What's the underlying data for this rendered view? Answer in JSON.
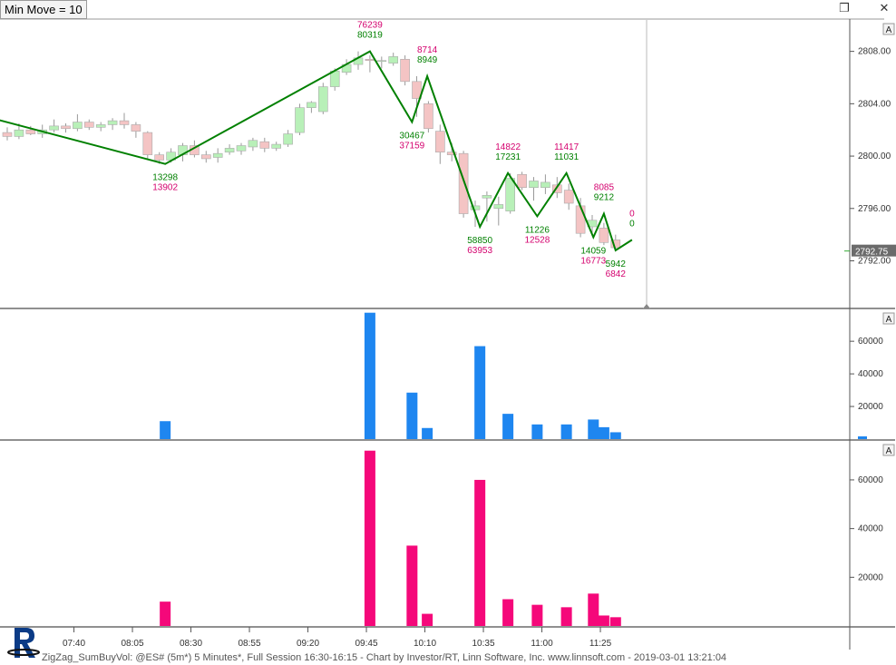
{
  "toolbar": {
    "min_move_label": "Min Move = 10"
  },
  "footer": {
    "caption": "ZigZag_SumBuyVol: @ES# (5m*) 5 Minutes*, Full Session 16:30-16:15 - Chart by Investor/RT, Linn Software, Inc. www.linnsoft.com - 2019-03-01 13:21:04"
  },
  "colors": {
    "up_candle": "#b8f0b8",
    "down_candle": "#f4c4c4",
    "zigzag": "#008000",
    "buy_volume": "#1e86f0",
    "sell_volume": "#f5087a",
    "label_green": "#008000",
    "label_magenta": "#d4006e"
  },
  "chart_data": [
    {
      "type": "candlestick",
      "symbol": "@ES# (5m*)",
      "y_ticks": [
        2792,
        2796,
        2800,
        2804,
        2808
      ],
      "ylim": [
        2788.5,
        2810.4
      ],
      "x_tick_labels": [
        "07:40",
        "08:05",
        "08:30",
        "08:55",
        "09:20",
        "09:45",
        "10:10",
        "10:35",
        "11:00",
        "11:25"
      ],
      "last_price_label": "2792.75",
      "candles": [
        {
          "o": 2801.8,
          "h": 2802.2,
          "l": 2801.2,
          "c": 2801.5
        },
        {
          "o": 2801.5,
          "h": 2802.5,
          "l": 2801.3,
          "c": 2802.0
        },
        {
          "o": 2802.0,
          "h": 2802.3,
          "l": 2801.6,
          "c": 2801.7
        },
        {
          "o": 2801.7,
          "h": 2802.4,
          "l": 2801.4,
          "c": 2802.0
        },
        {
          "o": 2802.0,
          "h": 2802.8,
          "l": 2801.8,
          "c": 2802.3
        },
        {
          "o": 2802.3,
          "h": 2802.5,
          "l": 2801.8,
          "c": 2802.1
        },
        {
          "o": 2802.1,
          "h": 2803.2,
          "l": 2801.9,
          "c": 2802.6
        },
        {
          "o": 2802.6,
          "h": 2802.8,
          "l": 2802.0,
          "c": 2802.2
        },
        {
          "o": 2802.2,
          "h": 2802.6,
          "l": 2801.9,
          "c": 2802.4
        },
        {
          "o": 2802.4,
          "h": 2802.9,
          "l": 2802.0,
          "c": 2802.7
        },
        {
          "o": 2802.7,
          "h": 2803.3,
          "l": 2802.1,
          "c": 2802.4
        },
        {
          "o": 2802.4,
          "h": 2802.6,
          "l": 2801.4,
          "c": 2801.9
        },
        {
          "o": 2801.8,
          "h": 2801.9,
          "l": 2799.8,
          "c": 2800.1
        },
        {
          "o": 2800.1,
          "h": 2800.3,
          "l": 2799.4,
          "c": 2799.7
        },
        {
          "o": 2799.7,
          "h": 2800.6,
          "l": 2799.5,
          "c": 2800.3
        },
        {
          "o": 2800.1,
          "h": 2801.0,
          "l": 2799.6,
          "c": 2800.8
        },
        {
          "o": 2800.8,
          "h": 2801.2,
          "l": 2799.9,
          "c": 2800.1
        },
        {
          "o": 2800.1,
          "h": 2800.4,
          "l": 2799.5,
          "c": 2799.8
        },
        {
          "o": 2799.9,
          "h": 2800.6,
          "l": 2799.5,
          "c": 2800.2
        },
        {
          "o": 2800.3,
          "h": 2800.9,
          "l": 2800.1,
          "c": 2800.6
        },
        {
          "o": 2800.4,
          "h": 2801.0,
          "l": 2800.1,
          "c": 2800.8
        },
        {
          "o": 2800.7,
          "h": 2801.4,
          "l": 2800.4,
          "c": 2801.2
        },
        {
          "o": 2801.1,
          "h": 2801.4,
          "l": 2800.3,
          "c": 2800.6
        },
        {
          "o": 2800.6,
          "h": 2801.1,
          "l": 2800.4,
          "c": 2800.9
        },
        {
          "o": 2800.9,
          "h": 2802.0,
          "l": 2800.7,
          "c": 2801.7
        },
        {
          "o": 2801.8,
          "h": 2804.0,
          "l": 2801.6,
          "c": 2803.7
        },
        {
          "o": 2803.7,
          "h": 2804.2,
          "l": 2803.3,
          "c": 2804.1
        },
        {
          "o": 2803.4,
          "h": 2805.6,
          "l": 2803.2,
          "c": 2805.3
        },
        {
          "o": 2805.3,
          "h": 2806.7,
          "l": 2805.0,
          "c": 2806.5
        },
        {
          "o": 2806.4,
          "h": 2807.4,
          "l": 2806.2,
          "c": 2807.0
        },
        {
          "o": 2807.0,
          "h": 2808.0,
          "l": 2806.6,
          "c": 2807.5
        },
        {
          "o": 2807.4,
          "h": 2807.7,
          "l": 2806.4,
          "c": 2807.3
        },
        {
          "o": 2807.3,
          "h": 2807.6,
          "l": 2806.7,
          "c": 2807.3
        },
        {
          "o": 2807.1,
          "h": 2807.9,
          "l": 2806.9,
          "c": 2807.6
        },
        {
          "o": 2807.4,
          "h": 2807.7,
          "l": 2805.4,
          "c": 2805.7
        },
        {
          "o": 2805.7,
          "h": 2806.1,
          "l": 2803.0,
          "c": 2804.4
        },
        {
          "o": 2804.0,
          "h": 2804.2,
          "l": 2801.8,
          "c": 2802.1
        },
        {
          "o": 2801.9,
          "h": 2802.4,
          "l": 2799.4,
          "c": 2800.3
        },
        {
          "o": 2800.3,
          "h": 2801.0,
          "l": 2799.6,
          "c": 2800.1
        },
        {
          "o": 2800.2,
          "h": 2800.4,
          "l": 2795.3,
          "c": 2795.6
        },
        {
          "o": 2795.9,
          "h": 2796.6,
          "l": 2794.6,
          "c": 2796.2
        },
        {
          "o": 2796.8,
          "h": 2797.3,
          "l": 2795.0,
          "c": 2797.0
        },
        {
          "o": 2796.0,
          "h": 2796.9,
          "l": 2794.7,
          "c": 2796.3
        },
        {
          "o": 2795.8,
          "h": 2798.7,
          "l": 2795.6,
          "c": 2798.3
        },
        {
          "o": 2798.6,
          "h": 2798.8,
          "l": 2797.4,
          "c": 2797.6
        },
        {
          "o": 2797.6,
          "h": 2798.4,
          "l": 2796.6,
          "c": 2798.1
        },
        {
          "o": 2797.6,
          "h": 2798.6,
          "l": 2797.1,
          "c": 2798.0
        },
        {
          "o": 2797.8,
          "h": 2798.4,
          "l": 2796.8,
          "c": 2797.2
        },
        {
          "o": 2797.4,
          "h": 2797.9,
          "l": 2795.9,
          "c": 2796.4
        },
        {
          "o": 2796.2,
          "h": 2796.8,
          "l": 2793.8,
          "c": 2794.1
        },
        {
          "o": 2794.6,
          "h": 2795.5,
          "l": 2794.0,
          "c": 2795.1
        },
        {
          "o": 2794.5,
          "h": 2794.9,
          "l": 2793.2,
          "c": 2793.4
        },
        {
          "o": 2793.6,
          "h": 2794.0,
          "l": 2792.8,
          "c": 2793.0
        }
      ],
      "zigzag": [
        {
          "i": -2.6,
          "p": 2803.2
        },
        {
          "i": 13.5,
          "p": 2799.4
        },
        {
          "i": 31.0,
          "p": 2808.0
        },
        {
          "i": 34.6,
          "p": 2802.6
        },
        {
          "i": 35.9,
          "p": 2806.1
        },
        {
          "i": 40.4,
          "p": 2794.6
        },
        {
          "i": 42.8,
          "p": 2798.7
        },
        {
          "i": 45.3,
          "p": 2795.4
        },
        {
          "i": 47.8,
          "p": 2798.7
        },
        {
          "i": 50.1,
          "p": 2793.8
        },
        {
          "i": 51.0,
          "p": 2795.6
        },
        {
          "i": 52.0,
          "p": 2792.8
        },
        {
          "i": 53.4,
          "p": 2793.6
        }
      ],
      "pivot_labels": [
        {
          "i": 31.0,
          "pos": "above",
          "buy": "80319",
          "sell": "76239"
        },
        {
          "i": 13.5,
          "pos": "below",
          "buy": "13298",
          "sell": "13902"
        },
        {
          "i": 35.9,
          "pos": "above",
          "buy": "8949",
          "sell": "8714"
        },
        {
          "i": 34.6,
          "pos": "below",
          "buy": "30467",
          "sell": "37159"
        },
        {
          "i": 40.4,
          "pos": "below",
          "buy": "58850",
          "sell": "63953"
        },
        {
          "i": 42.8,
          "pos": "above",
          "buy": "17231",
          "sell": "14822"
        },
        {
          "i": 45.3,
          "pos": "below",
          "buy": "11226",
          "sell": "12528"
        },
        {
          "i": 47.8,
          "pos": "above",
          "buy": "11031",
          "sell": "11417"
        },
        {
          "i": 50.1,
          "pos": "below",
          "buy": "14059",
          "sell": "16773"
        },
        {
          "i": 51.0,
          "pos": "above",
          "buy": "9212",
          "sell": "8085"
        },
        {
          "i": 52.0,
          "pos": "below",
          "buy": "5942",
          "sell": "6842"
        },
        {
          "i": 53.4,
          "pos": "above",
          "buy": "0",
          "sell": "0"
        }
      ]
    },
    {
      "type": "bar",
      "name": "Buy Volume",
      "y_ticks": [
        20000,
        40000,
        60000
      ],
      "ylim": [
        0,
        79000
      ],
      "bars": [
        {
          "i": 13.5,
          "v": 11000
        },
        {
          "i": 31.0,
          "v": 77500
        },
        {
          "i": 34.6,
          "v": 28500
        },
        {
          "i": 35.9,
          "v": 6800
        },
        {
          "i": 40.4,
          "v": 57000
        },
        {
          "i": 42.8,
          "v": 15500
        },
        {
          "i": 45.3,
          "v": 9000
        },
        {
          "i": 47.8,
          "v": 9000
        },
        {
          "i": 50.1,
          "v": 12000
        },
        {
          "i": 51.0,
          "v": 7300
        },
        {
          "i": 52.0,
          "v": 4200
        }
      ]
    },
    {
      "type": "bar",
      "name": "Sell Volume",
      "y_ticks": [
        20000,
        40000,
        60000
      ],
      "ylim": [
        0,
        76000
      ],
      "bars": [
        {
          "i": 13.5,
          "v": 10000
        },
        {
          "i": 31.0,
          "v": 72000
        },
        {
          "i": 34.6,
          "v": 33000
        },
        {
          "i": 35.9,
          "v": 5000
        },
        {
          "i": 40.4,
          "v": 60000
        },
        {
          "i": 42.8,
          "v": 11000
        },
        {
          "i": 45.3,
          "v": 8700
        },
        {
          "i": 47.8,
          "v": 7700
        },
        {
          "i": 50.1,
          "v": 13300
        },
        {
          "i": 51.0,
          "v": 4300
        },
        {
          "i": 52.0,
          "v": 3600
        }
      ]
    }
  ]
}
